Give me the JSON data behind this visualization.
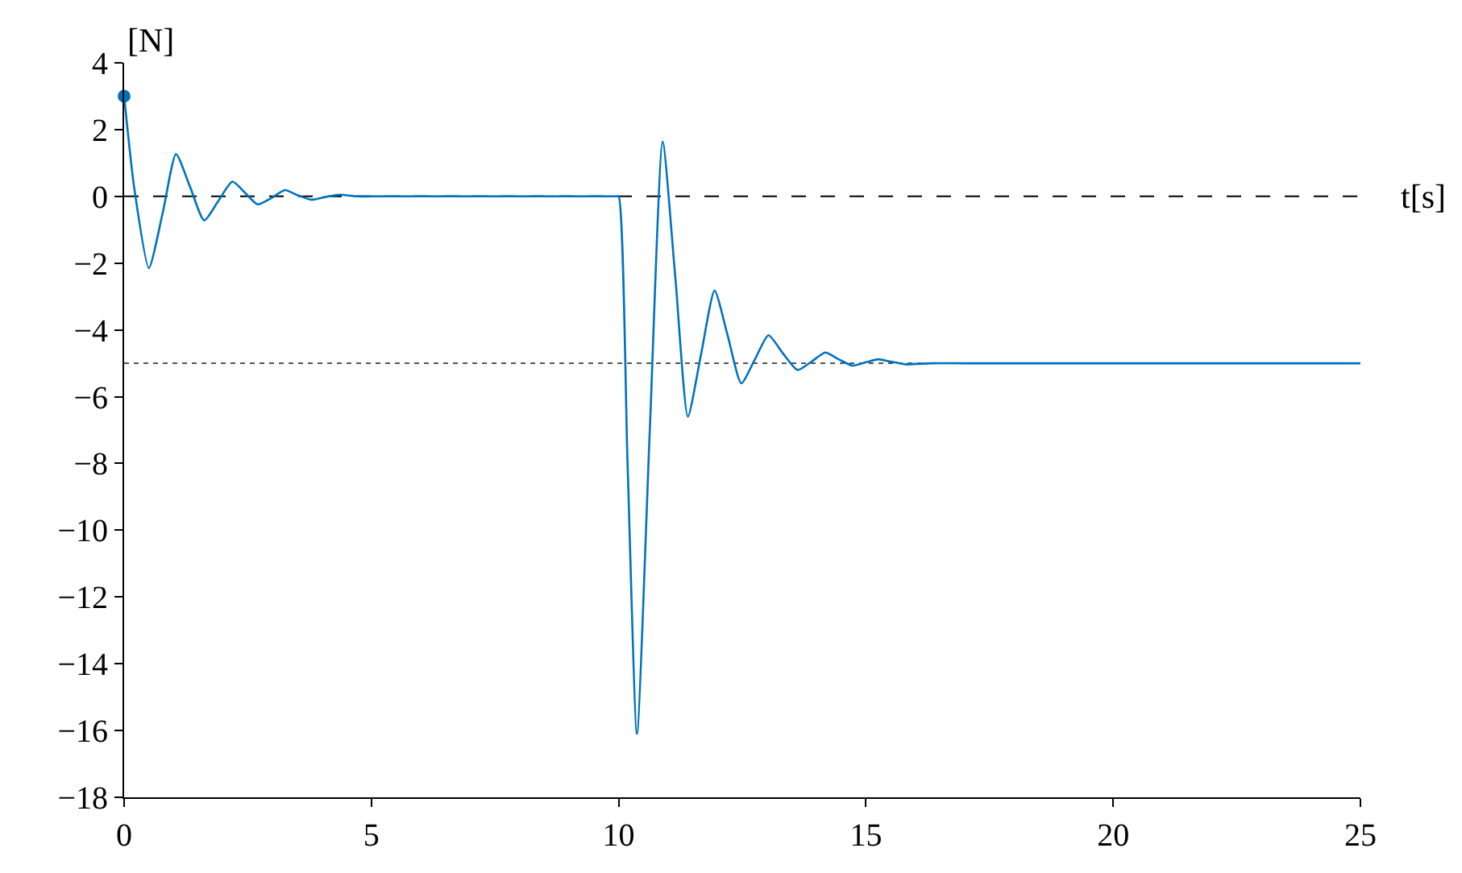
{
  "chart_data": {
    "type": "line",
    "xlabel": "t[s]",
    "ylabel": "[N]",
    "xlim": [
      0,
      25
    ],
    "xticks": [
      0,
      5,
      10,
      15,
      20,
      25
    ],
    "ylim": [
      -18,
      4
    ],
    "yticks": [
      {
        "value": -18,
        "label": "−18"
      },
      {
        "value": -16,
        "label": "−16"
      },
      {
        "value": -14,
        "label": "−14"
      },
      {
        "value": -12,
        "label": "−12"
      },
      {
        "value": -10,
        "label": "−10"
      },
      {
        "value": -8,
        "label": "−8"
      },
      {
        "value": -6,
        "label": "−6"
      },
      {
        "value": -4,
        "label": "−4"
      },
      {
        "value": -2,
        "label": "−2"
      },
      0,
      2,
      4
    ],
    "grid": false,
    "series": [
      {
        "color": "#0072bd",
        "marker": "none",
        "x": [
          0,
          0.2,
          0.5,
          0.78,
          1.05,
          1.33,
          1.62,
          1.9,
          2.19,
          2.45,
          2.7,
          3.0,
          3.25,
          3.5,
          3.78,
          4.07,
          4.37,
          4.7,
          5.0,
          6,
          7,
          8,
          9,
          9.95,
          10.0,
          10.18,
          10.37,
          10.63,
          10.89,
          11.15,
          11.4,
          11.67,
          11.94,
          12.21,
          12.48,
          12.75,
          13.03,
          13.32,
          13.62,
          13.9,
          14.18,
          14.45,
          14.73,
          15.0,
          15.25,
          15.5,
          15.8,
          16.3,
          17,
          20,
          25
        ],
        "values": [
          3.0,
          0.3,
          -2.15,
          -0.5,
          1.27,
          0.3,
          -0.72,
          -0.15,
          0.44,
          0.1,
          -0.24,
          -0.03,
          0.19,
          0.04,
          -0.1,
          -0.02,
          0.05,
          0.0,
          0.0,
          0.0,
          0.0,
          0.0,
          0.0,
          0.0,
          0.0,
          -8.0,
          -16.1,
          -7.0,
          1.64,
          -2.5,
          -6.6,
          -4.7,
          -2.82,
          -4.2,
          -5.6,
          -4.9,
          -4.16,
          -4.7,
          -5.2,
          -4.95,
          -4.68,
          -4.88,
          -5.07,
          -4.97,
          -4.88,
          -4.95,
          -5.03,
          -5.0,
          -5.0,
          -5.0,
          -5.0
        ]
      },
      {
        "type": "scatter",
        "color": "#0072bd",
        "marker": "circle",
        "x": [
          0
        ],
        "values": [
          3.0
        ]
      }
    ],
    "ref_lines": [
      {
        "axis": "y",
        "value": 0,
        "color": "#000000",
        "line_style": "dashed"
      },
      {
        "axis": "y",
        "value": -5,
        "color": "#555555",
        "line_style": "dotted"
      }
    ]
  }
}
